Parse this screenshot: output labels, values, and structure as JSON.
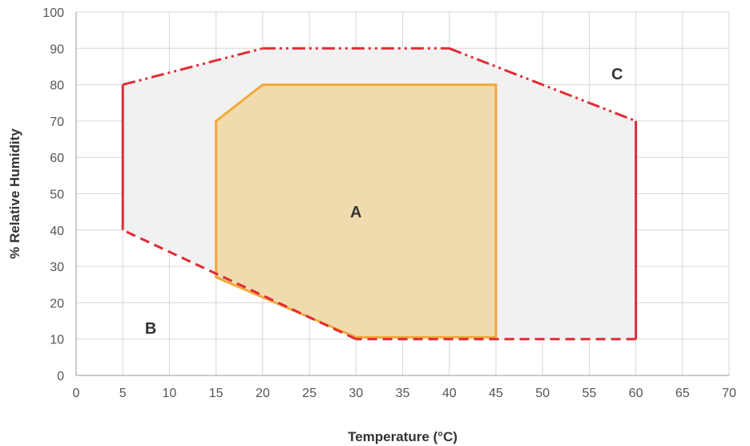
{
  "chart_data": {
    "type": "area",
    "title": "",
    "xlabel": "Temperature (°C)",
    "ylabel": "% Relative Humidity",
    "xlim": [
      0,
      70
    ],
    "ylim": [
      0,
      100
    ],
    "xticks": [
      0,
      5,
      10,
      15,
      20,
      25,
      30,
      35,
      40,
      45,
      50,
      55,
      60,
      65,
      70
    ],
    "yticks": [
      0,
      10,
      20,
      30,
      40,
      50,
      60,
      70,
      80,
      90,
      100
    ],
    "grid": true,
    "outer_region": {
      "boundary": [
        [
          5,
          40
        ],
        [
          5,
          80
        ],
        [
          20,
          90
        ],
        [
          40,
          90
        ],
        [
          60,
          70
        ],
        [
          60,
          10
        ],
        [
          30,
          10
        ]
      ],
      "fill": "#f0f0f0",
      "line_color": "#e02b35"
    },
    "inner_region": {
      "label": "A",
      "boundary": [
        [
          15,
          27
        ],
        [
          15,
          70
        ],
        [
          20,
          80
        ],
        [
          45,
          80
        ],
        [
          45,
          10.5
        ],
        [
          30,
          10.5
        ]
      ],
      "fill": "#f0d7a3",
      "line_color": "#f2a93b"
    },
    "annotations": [
      {
        "text": "A",
        "x": 30,
        "y": 45
      },
      {
        "text": "B",
        "x": 8,
        "y": 13
      },
      {
        "text": "C",
        "x": 58,
        "y": 83
      }
    ]
  },
  "colors": {
    "grid": "#d6d6d6",
    "axis": "#999999",
    "outer_line": "#e02b35",
    "inner_line": "#f2a93b"
  }
}
